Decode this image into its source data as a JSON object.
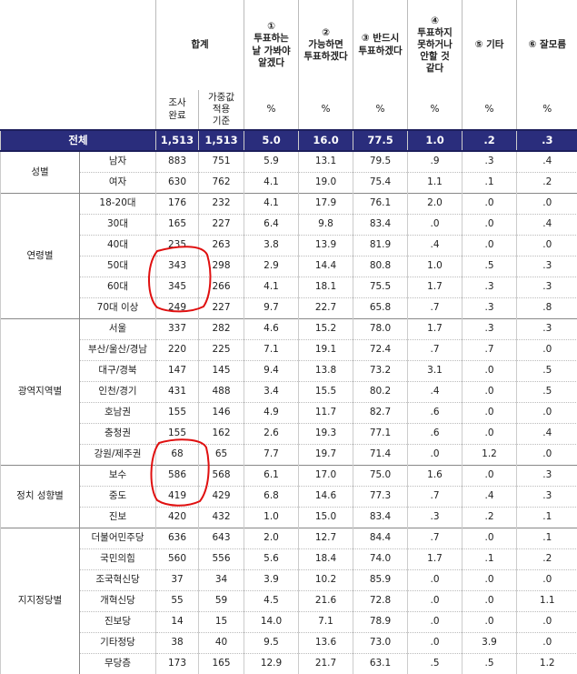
{
  "header": {
    "total": "합계",
    "cols": [
      {
        "num": "①",
        "lines": [
          "투표하는",
          "날 가봐야",
          "알겠다"
        ]
      },
      {
        "num": "②",
        "lines": [
          "가능하면",
          "투표하겠다"
        ]
      },
      {
        "num": "③",
        "lines": [
          "③ 반드시",
          "투표하겠다"
        ]
      },
      {
        "num": "④",
        "lines": [
          "투표하지",
          "못하거나",
          "안할 것",
          "같다"
        ]
      },
      {
        "num": "",
        "lines": [
          "⑤ 기타"
        ]
      },
      {
        "num": "",
        "lines": [
          "⑥ 잘모름"
        ]
      }
    ],
    "sub_survey": [
      "조사",
      "완료"
    ],
    "sub_weighted": [
      "가중값",
      "적용",
      "기준"
    ],
    "pct": "%"
  },
  "total_row": {
    "label": "전체",
    "values": [
      "1,513",
      "1,513",
      "5.0",
      "16.0",
      "77.5",
      "1.0",
      ".2",
      ".3"
    ]
  },
  "groups": [
    {
      "label": "성별",
      "rows": [
        {
          "label": "남자",
          "values": [
            "883",
            "751",
            "5.9",
            "13.1",
            "79.5",
            ".9",
            ".3",
            ".4"
          ]
        },
        {
          "label": "여자",
          "values": [
            "630",
            "762",
            "4.1",
            "19.0",
            "75.4",
            "1.1",
            ".1",
            ".2"
          ]
        }
      ]
    },
    {
      "label": "연령별",
      "rows": [
        {
          "label": "18-20대",
          "values": [
            "176",
            "232",
            "4.1",
            "17.9",
            "76.1",
            "2.0",
            ".0",
            ".0"
          ]
        },
        {
          "label": "30대",
          "values": [
            "165",
            "227",
            "6.4",
            "9.8",
            "83.4",
            ".0",
            ".0",
            ".4"
          ]
        },
        {
          "label": "40대",
          "values": [
            "235",
            "263",
            "3.8",
            "13.9",
            "81.9",
            ".4",
            ".0",
            ".0"
          ]
        },
        {
          "label": "50대",
          "values": [
            "343",
            "298",
            "2.9",
            "14.4",
            "80.8",
            "1.0",
            ".5",
            ".3"
          ]
        },
        {
          "label": "60대",
          "values": [
            "345",
            "266",
            "4.1",
            "18.1",
            "75.5",
            "1.7",
            ".3",
            ".3"
          ]
        },
        {
          "label": "70대 이상",
          "values": [
            "249",
            "227",
            "9.7",
            "22.7",
            "65.8",
            ".7",
            ".3",
            ".8"
          ]
        }
      ]
    },
    {
      "label": "광역지역별",
      "rows": [
        {
          "label": "서울",
          "values": [
            "337",
            "282",
            "4.6",
            "15.2",
            "78.0",
            "1.7",
            ".3",
            ".3"
          ]
        },
        {
          "label": "부산/울산/경남",
          "values": [
            "220",
            "225",
            "7.1",
            "19.1",
            "72.4",
            ".7",
            ".7",
            ".0"
          ]
        },
        {
          "label": "대구/경북",
          "values": [
            "147",
            "145",
            "9.4",
            "13.8",
            "73.2",
            "3.1",
            ".0",
            ".5"
          ]
        },
        {
          "label": "인천/경기",
          "values": [
            "431",
            "488",
            "3.4",
            "15.5",
            "80.2",
            ".4",
            ".0",
            ".5"
          ]
        },
        {
          "label": "호남권",
          "values": [
            "155",
            "146",
            "4.9",
            "11.7",
            "82.7",
            ".6",
            ".0",
            ".0"
          ]
        },
        {
          "label": "충청권",
          "values": [
            "155",
            "162",
            "2.6",
            "19.3",
            "77.1",
            ".6",
            ".0",
            ".4"
          ]
        },
        {
          "label": "강원/제주권",
          "values": [
            "68",
            "65",
            "7.7",
            "19.7",
            "71.4",
            ".0",
            "1.2",
            ".0"
          ]
        }
      ]
    },
    {
      "label": "정치 성향별",
      "rows": [
        {
          "label": "보수",
          "values": [
            "586",
            "568",
            "6.1",
            "17.0",
            "75.0",
            "1.6",
            ".0",
            ".3"
          ]
        },
        {
          "label": "중도",
          "values": [
            "419",
            "429",
            "6.8",
            "14.6",
            "77.3",
            ".7",
            ".4",
            ".3"
          ]
        },
        {
          "label": "진보",
          "values": [
            "420",
            "432",
            "1.0",
            "15.0",
            "83.4",
            ".3",
            ".2",
            ".1"
          ]
        }
      ]
    },
    {
      "label": "지지정당별",
      "rows": [
        {
          "label": "더불어민주당",
          "values": [
            "636",
            "643",
            "2.0",
            "12.7",
            "84.4",
            ".7",
            ".0",
            ".1"
          ]
        },
        {
          "label": "국민의힘",
          "values": [
            "560",
            "556",
            "5.6",
            "18.4",
            "74.0",
            "1.7",
            ".1",
            ".2"
          ]
        },
        {
          "label": "조국혁신당",
          "values": [
            "37",
            "34",
            "3.9",
            "10.2",
            "85.9",
            ".0",
            ".0",
            ".0"
          ]
        },
        {
          "label": "개혁신당",
          "values": [
            "55",
            "59",
            "4.5",
            "21.6",
            "72.8",
            ".0",
            ".0",
            "1.1"
          ]
        },
        {
          "label": "진보당",
          "values": [
            "14",
            "15",
            "14.0",
            "7.1",
            "78.9",
            ".0",
            ".0",
            ".0"
          ]
        },
        {
          "label": "기타정당",
          "values": [
            "38",
            "40",
            "9.5",
            "13.6",
            "73.0",
            ".0",
            "3.9",
            ".0"
          ]
        },
        {
          "label": "무당층",
          "values": [
            "173",
            "165",
            "12.9",
            "21.7",
            "63.1",
            ".5",
            ".5",
            "1.2"
          ]
        }
      ]
    }
  ],
  "annotations": {
    "stroke_color": "#e01010"
  }
}
